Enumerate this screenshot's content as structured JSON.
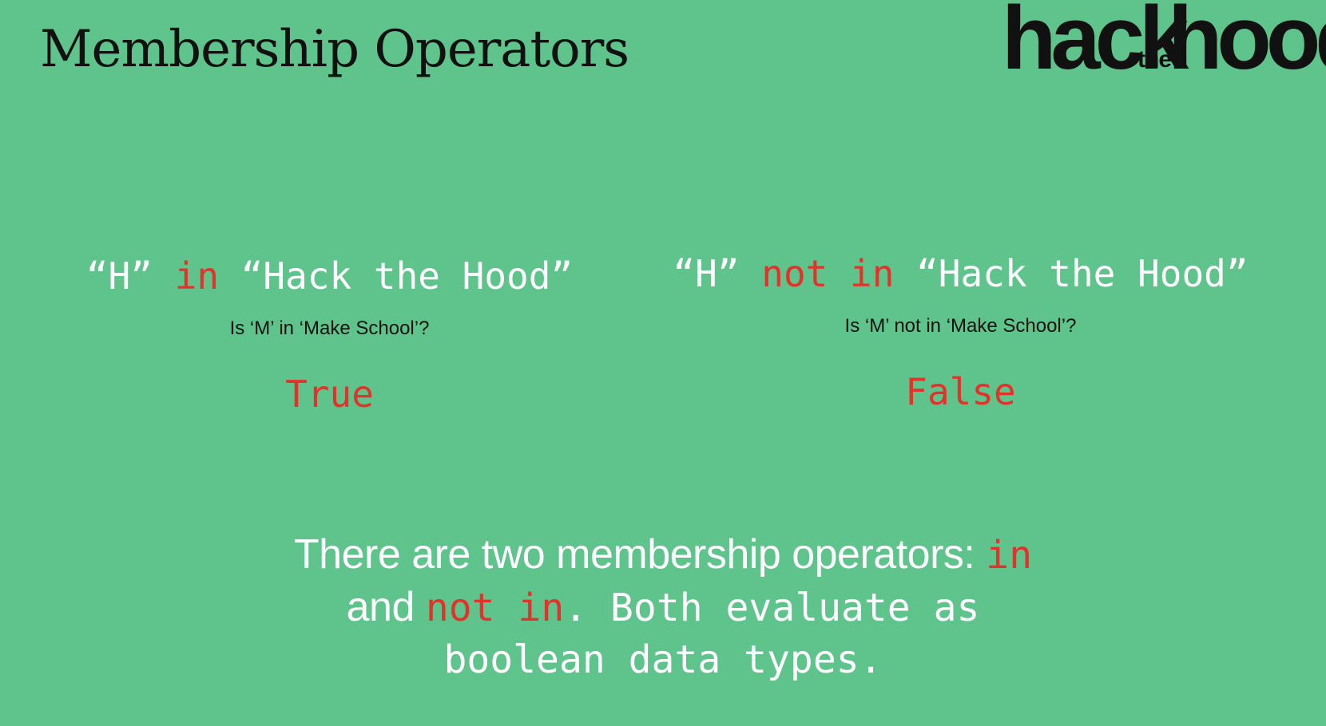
{
  "slide": {
    "title": "Membership Operators"
  },
  "logo": {
    "word_hack": "hack",
    "word_the": "the",
    "word_hood": "hood"
  },
  "left": {
    "expr_open": "“H” ",
    "expr_operator": "in",
    "expr_close": " “Hack the Hood”",
    "question": "Is ‘M’ in ‘Make School’?",
    "result": "True"
  },
  "right": {
    "expr_open": "“H” ",
    "expr_operator": "not in",
    "expr_close": " “Hack the Hood”",
    "question": "Is ‘M’ not in ‘Make School’?",
    "result": "False"
  },
  "summary": {
    "line1_text": "There are two membership operators: ",
    "line1_code": "in",
    "line2_text": "and ",
    "line2_code": "not in",
    "line2_rest": ". Both evaluate as",
    "line3": "boolean data types."
  },
  "colors": {
    "background": "#5ec48b",
    "keyword": "#e4322b",
    "title": "#111111",
    "code_text": "#ffffff"
  }
}
